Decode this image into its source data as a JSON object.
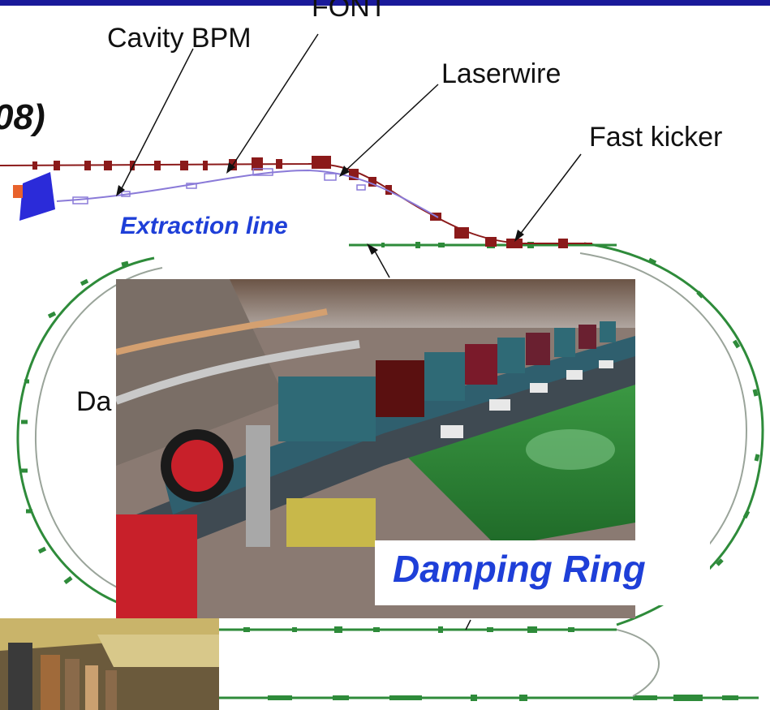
{
  "labels": {
    "cavity_bpm": "Cavity BPM",
    "font": "FONT",
    "laserwire": "Laserwire",
    "fast_kicker": "Fast kicker",
    "extraction_line": "Extraction line",
    "damping_ring": "Damping Ring",
    "title_fragment": "08)",
    "ring_partial": "Da"
  },
  "colors": {
    "top_bar": "#1a1a9a",
    "accent_text": "#1e3fd8",
    "beamline_red": "#8b1a1a",
    "beamline_violet": "#8a7ad8",
    "ring_green": "#2e8b3a",
    "magnet_blue": "#2b2bd9",
    "magnet_orange": "#e8622c",
    "floor_green": "#2f8a3a"
  },
  "images": {
    "main_photo": "damping-ring-tunnel-photo",
    "small_photo": "accelerator-tunnel-photo"
  }
}
